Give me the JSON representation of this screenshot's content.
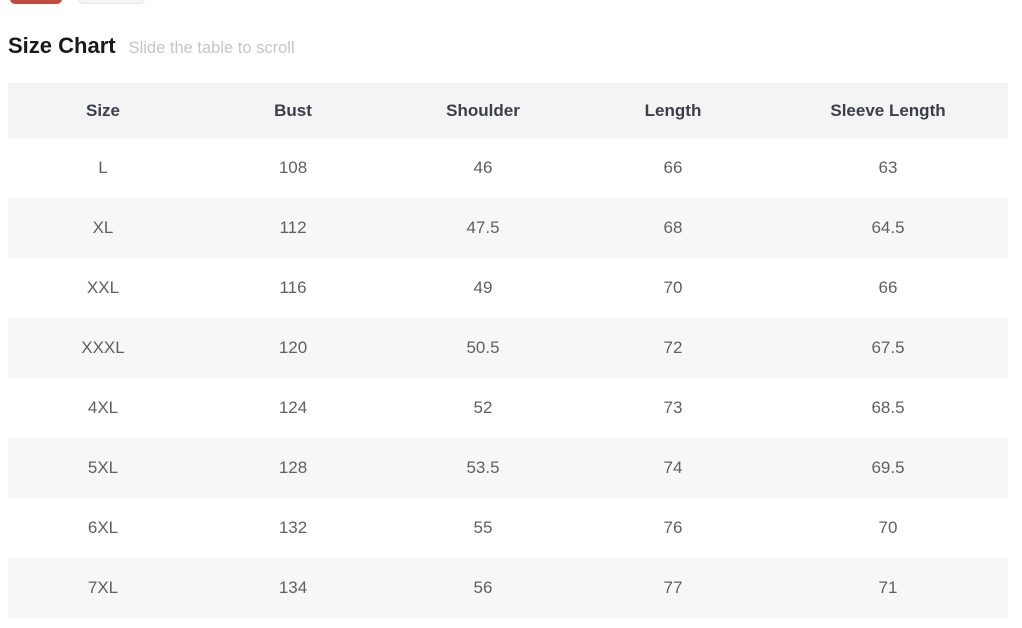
{
  "header": {
    "title": "Size Chart",
    "hint": "Slide the table to scroll"
  },
  "top_partial_buttons": [
    {
      "name": "option-button-red",
      "color": "#c14b40"
    },
    {
      "name": "option-button-gray",
      "color": "#f5f5f5"
    }
  ],
  "size_chart": {
    "columns": [
      "Size",
      "Bust",
      "Shoulder",
      "Length",
      "Sleeve Length"
    ],
    "rows": [
      [
        "L",
        "108",
        "46",
        "66",
        "63"
      ],
      [
        "XL",
        "112",
        "47.5",
        "68",
        "64.5"
      ],
      [
        "XXL",
        "116",
        "49",
        "70",
        "66"
      ],
      [
        "XXXL",
        "120",
        "50.5",
        "72",
        "67.5"
      ],
      [
        "4XL",
        "124",
        "52",
        "73",
        "68.5"
      ],
      [
        "5XL",
        "128",
        "53.5",
        "74",
        "69.5"
      ],
      [
        "6XL",
        "132",
        "55",
        "76",
        "70"
      ],
      [
        "7XL",
        "134",
        "56",
        "77",
        "71"
      ]
    ]
  },
  "colors": {
    "accent_red": "#c14b40",
    "header_row_bg": "#f4f4f4",
    "zebra_row_bg": "#f7f7f7",
    "header_text": "#3a4049",
    "cell_text": "#5e6063",
    "hint_text": "#c6c6c6"
  }
}
